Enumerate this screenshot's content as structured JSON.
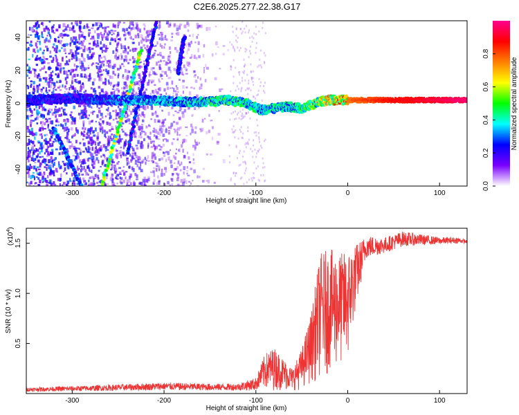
{
  "figure": {
    "title": "C2E6.2025.277.22.38.G17"
  },
  "chart_data": [
    {
      "type": "heatmap",
      "title": "C2E6.2025.277.22.38.G17",
      "xlabel": "Height of straight line (km)",
      "ylabel": "Frequency (Hz)",
      "xlim": [
        -350,
        130
      ],
      "ylim": [
        -50,
        50
      ],
      "xticks": [
        -300,
        -200,
        -100,
        0,
        100
      ],
      "xtick_labels": [
        "-300",
        "-200",
        "-100",
        "0",
        "100"
      ],
      "yticks": [
        -40,
        -20,
        0,
        20,
        40
      ],
      "ytick_labels": [
        "-40",
        "-20",
        "0",
        "20",
        "40"
      ],
      "colorbar": {
        "label": "Normalized spectral amplitude",
        "ticks": [
          0.0,
          0.2,
          0.4,
          0.6,
          0.8
        ],
        "tick_labels": [
          "0.0",
          "0.2",
          "0.4",
          "0.6",
          "0.8"
        ],
        "range": [
          0,
          1
        ],
        "colormap": [
          "#ffffff",
          "#7a00ff",
          "#0000ff",
          "#00ffff",
          "#00ff00",
          "#ffff00",
          "#ff7f00",
          "#ff0000",
          "#ff0090"
        ]
      },
      "features": {
        "central_band": {
          "points": [
            [
              -340,
              2
            ],
            [
              -300,
              3
            ],
            [
              -260,
              2
            ],
            [
              -220,
              2
            ],
            [
              -180,
              1
            ],
            [
              -150,
              1
            ],
            [
              -130,
              2
            ],
            [
              -110,
              0
            ],
            [
              -95,
              -4
            ],
            [
              -80,
              -3
            ],
            [
              -65,
              -2
            ],
            [
              -50,
              -3
            ],
            [
              -40,
              -1
            ],
            [
              -30,
              1
            ],
            [
              -20,
              2
            ],
            [
              0,
              2
            ],
            [
              50,
              2
            ],
            [
              90,
              2
            ],
            [
              130,
              2
            ]
          ],
          "amplitude": [
            0.25,
            0.25,
            0.3,
            0.35,
            0.4,
            0.45,
            0.5,
            0.45,
            0.4,
            0.4,
            0.45,
            0.45,
            0.5,
            0.6,
            0.7,
            0.8,
            0.9,
            0.95,
            1.0
          ]
        },
        "streaks": [
          {
            "x0": -268,
            "y0": -50,
            "x1": -225,
            "y1": 32,
            "amplitude": 0.55
          },
          {
            "x0": -240,
            "y0": -30,
            "x1": -208,
            "y1": 50,
            "amplitude": 0.25
          },
          {
            "x0": -320,
            "y0": -15,
            "x1": -290,
            "y1": -50,
            "amplitude": 0.3
          },
          {
            "x0": -185,
            "y0": 18,
            "x1": -178,
            "y1": 40,
            "amplitude": 0.25
          }
        ],
        "noise_extent_x": [
          -350,
          -130
        ],
        "sparse_noise_extent_x": [
          -130,
          -90
        ]
      }
    },
    {
      "type": "line",
      "xlabel": "Height of straight line (km)",
      "ylabel": "SNR (10 * v/v)",
      "scale_note": "(x10",
      "scale_exponent": "4",
      "xlim": [
        -350,
        130
      ],
      "ylim": [
        0,
        16500
      ],
      "xticks": [
        -300,
        -200,
        -100,
        0,
        100
      ],
      "xtick_labels": [
        "-300",
        "-200",
        "-100",
        "0",
        "100"
      ],
      "yticks": [
        5000,
        10000,
        15000
      ],
      "ytick_labels": [
        "0.5",
        "1.0",
        "1.5"
      ],
      "color": "#ee3333",
      "envelope": {
        "x": [
          -350,
          -280,
          -200,
          -150,
          -120,
          -100,
          -90,
          -80,
          -70,
          -60,
          -50,
          -40,
          -30,
          -20,
          -10,
          0,
          10,
          20,
          40,
          60,
          80,
          100,
          120,
          130
        ],
        "min": [
          200,
          250,
          350,
          300,
          300,
          300,
          300,
          300,
          300,
          300,
          400,
          1000,
          1500,
          2000,
          2500,
          3000,
          9000,
          13500,
          14000,
          14700,
          14800,
          14900,
          15000,
          15000
        ],
        "max": [
          600,
          800,
          1100,
          1000,
          1000,
          1600,
          4000,
          4600,
          3500,
          2500,
          4500,
          8000,
          14000,
          14500,
          14000,
          14200,
          15000,
          15800,
          15600,
          16200,
          15900,
          15600,
          15600,
          15300
        ]
      }
    }
  ]
}
